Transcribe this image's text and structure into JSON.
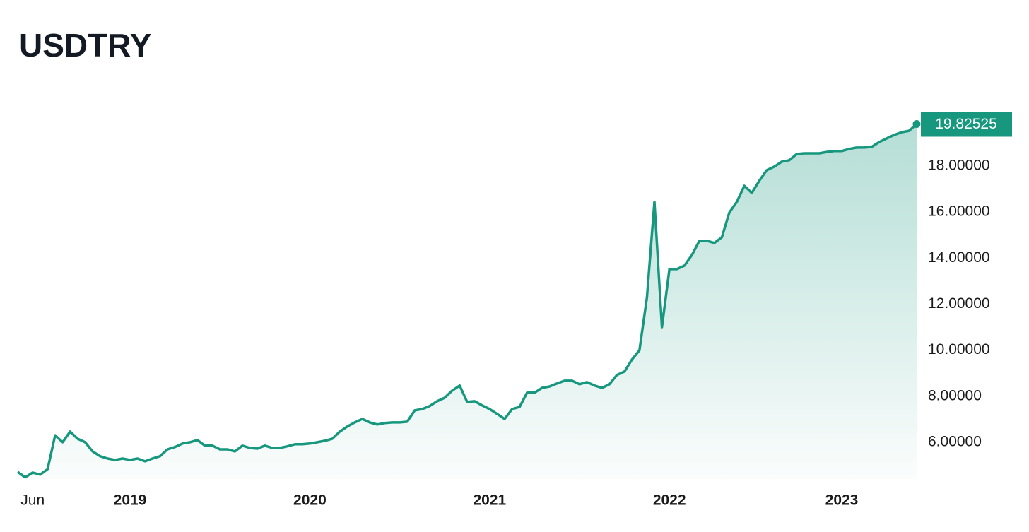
{
  "chart_data": {
    "type": "line",
    "title": "USDTRY",
    "color": "#16977e",
    "categories": [
      null,
      null,
      "Jun",
      null,
      null,
      null,
      null,
      null,
      null,
      null,
      null,
      null,
      null,
      null,
      null,
      "2019",
      null,
      null,
      null,
      null,
      null,
      null,
      null,
      null,
      null,
      null,
      null,
      null,
      null,
      null,
      null,
      null,
      null,
      null,
      null,
      null,
      null,
      null,
      null,
      "2020",
      null,
      null,
      null,
      null,
      null,
      null,
      null,
      null,
      null,
      null,
      null,
      null,
      null,
      null,
      null,
      null,
      null,
      null,
      null,
      null,
      null,
      null,
      null,
      "2021",
      null,
      null,
      null,
      null,
      null,
      null,
      null,
      null,
      null,
      null,
      null,
      null,
      null,
      null,
      null,
      null,
      null,
      null,
      null,
      null,
      null,
      null,
      null,
      "2022",
      null,
      null,
      null,
      null,
      null,
      null,
      null,
      null,
      null,
      null,
      null,
      null,
      null,
      null,
      null,
      null,
      null,
      null,
      null,
      null,
      null,
      null,
      "2023",
      null,
      null,
      null,
      null,
      null,
      null,
      null,
      null,
      null,
      null
    ],
    "values": [
      4.71,
      4.47,
      4.68,
      4.59,
      4.83,
      6.3,
      6.0,
      6.46,
      6.15,
      6.0,
      5.6,
      5.39,
      5.29,
      5.23,
      5.29,
      5.23,
      5.29,
      5.17,
      5.29,
      5.39,
      5.69,
      5.79,
      5.94,
      6.0,
      6.09,
      5.85,
      5.85,
      5.69,
      5.69,
      5.6,
      5.85,
      5.75,
      5.72,
      5.85,
      5.75,
      5.75,
      5.82,
      5.91,
      5.91,
      5.94,
      6.0,
      6.06,
      6.15,
      6.46,
      6.68,
      6.86,
      7.01,
      6.86,
      6.77,
      6.83,
      6.86,
      6.86,
      6.89,
      7.38,
      7.44,
      7.57,
      7.78,
      7.93,
      8.24,
      8.46,
      7.75,
      7.78,
      7.6,
      7.44,
      7.23,
      7.01,
      7.44,
      7.53,
      8.15,
      8.15,
      8.36,
      8.42,
      8.55,
      8.67,
      8.67,
      8.52,
      8.61,
      8.46,
      8.36,
      8.52,
      8.92,
      9.07,
      9.59,
      9.99,
      12.29,
      16.44,
      11.0,
      13.52,
      13.52,
      13.67,
      14.13,
      14.75,
      14.75,
      14.66,
      14.9,
      15.98,
      16.44,
      17.14,
      16.83,
      17.36,
      17.82,
      17.97,
      18.19,
      18.25,
      18.52,
      18.55,
      18.55,
      18.55,
      18.61,
      18.65,
      18.65,
      18.74,
      18.8,
      18.8,
      18.83,
      19.04,
      19.2,
      19.35,
      19.47,
      19.53,
      19.82525
    ],
    "ylim": [
      4.4,
      20.5
    ],
    "yticks": [
      {
        "value": 6,
        "label": "6.00000"
      },
      {
        "value": 8,
        "label": "8.00000"
      },
      {
        "value": 10,
        "label": "10.00000"
      },
      {
        "value": 12,
        "label": "12.00000"
      },
      {
        "value": 14,
        "label": "14.00000"
      },
      {
        "value": 16,
        "label": "16.00000"
      },
      {
        "value": 18,
        "label": "18.00000"
      }
    ],
    "grid": false
  }
}
